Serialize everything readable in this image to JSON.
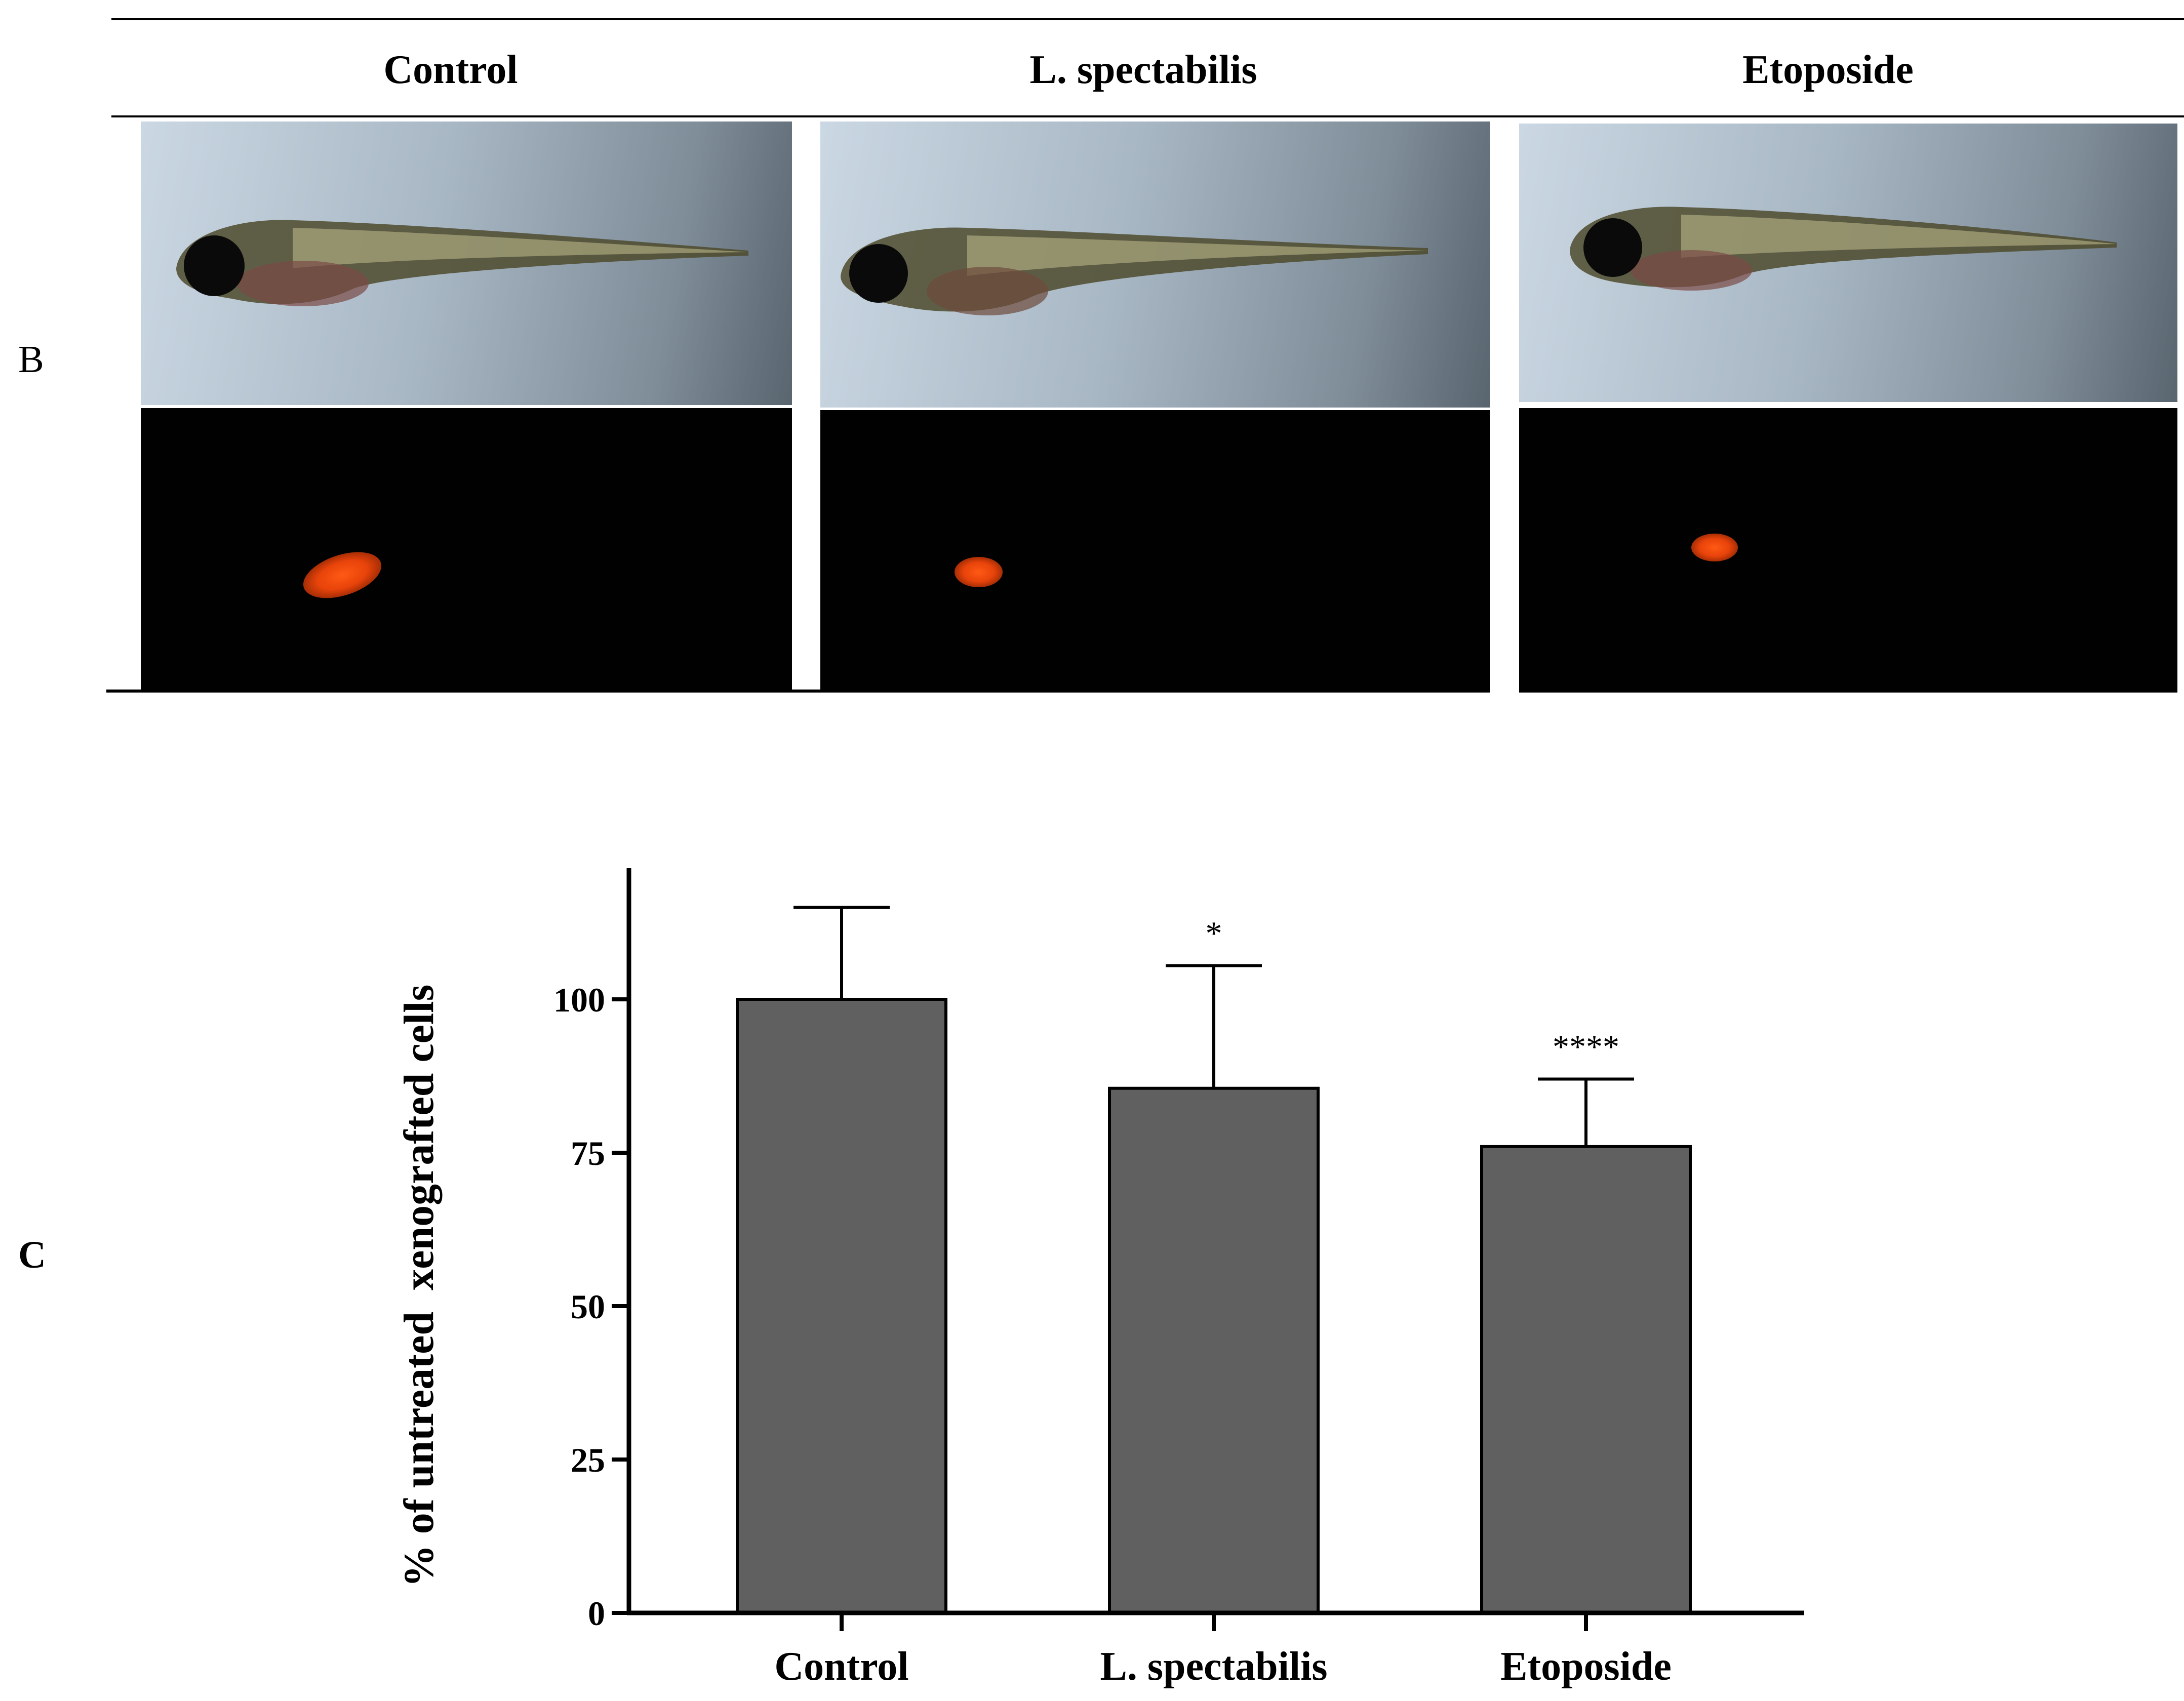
{
  "panel_b": {
    "letter": "B",
    "columns": [
      "Control",
      "L. spectabilis",
      "Etoposide"
    ]
  },
  "panel_c": {
    "letter": "C"
  },
  "chart_data": {
    "type": "bar",
    "categories": [
      "Control",
      "L. spectabilis",
      "Etoposide"
    ],
    "values": [
      100,
      85.5,
      76
    ],
    "error_upper": [
      115,
      105.5,
      87
    ],
    "significance": [
      "",
      "*",
      "****"
    ],
    "ylabel": "% of untreated  xenografted cells",
    "xlabel": "",
    "ylim": [
      0,
      120
    ],
    "yticks": [
      0,
      25,
      50,
      75,
      100
    ],
    "bar_color": "#606060",
    "grid": false
  }
}
